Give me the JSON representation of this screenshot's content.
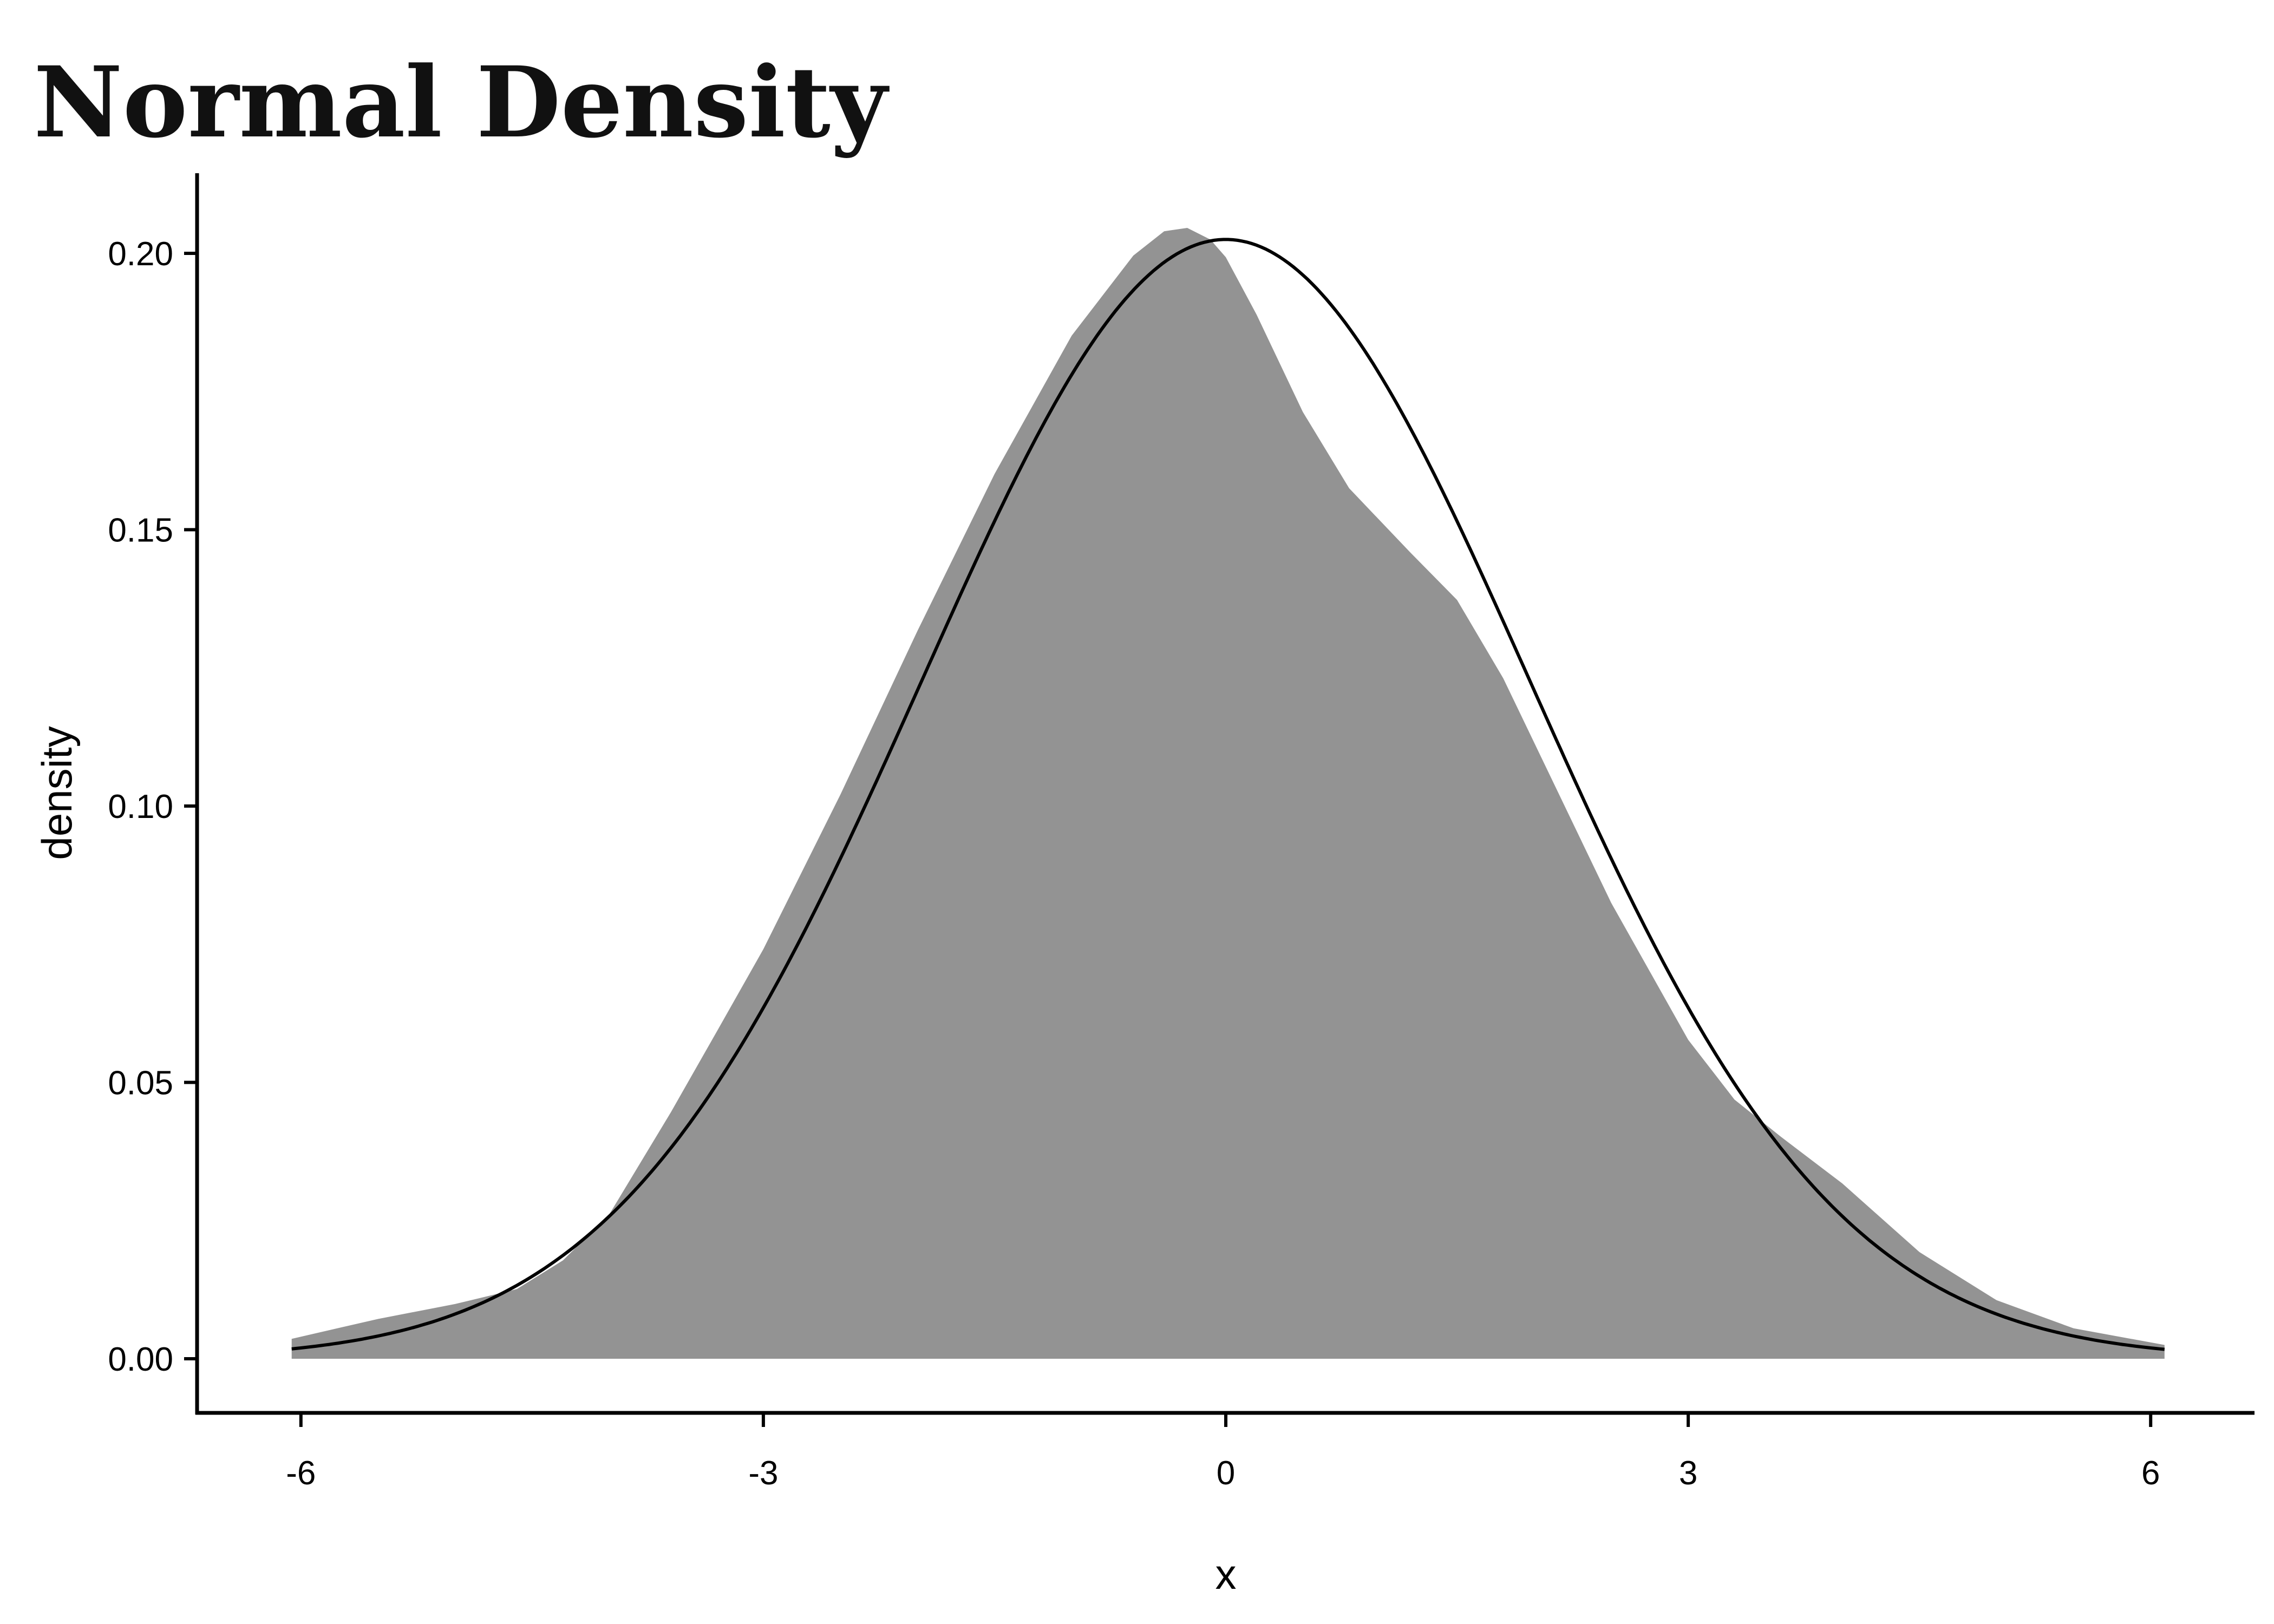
{
  "chart_data": {
    "type": "area",
    "title": "Normal Density",
    "xlabel": "x",
    "ylabel": "density",
    "xlim": [
      -6.6,
      6.6
    ],
    "ylim": [
      -0.01,
      0.215
    ],
    "x_ticks": [
      -6,
      -3,
      0,
      3,
      6
    ],
    "x_tick_labels": [
      "-6",
      "-3",
      "0",
      "3",
      "6"
    ],
    "y_ticks": [
      0.0,
      0.05,
      0.1,
      0.15,
      0.2
    ],
    "y_tick_labels": [
      "0.00",
      "0.05",
      "0.10",
      "0.15",
      "0.20"
    ],
    "grid": false,
    "series": [
      {
        "kind": "area",
        "color": "#939393",
        "x": [
          -6.06,
          -5.5,
          -5.0,
          -4.6,
          -4.3,
          -4.0,
          -3.6,
          -3.3,
          -3.0,
          -2.5,
          -2.0,
          -1.5,
          -1.0,
          -0.6,
          -0.4,
          -0.25,
          -0.1,
          0.0,
          0.2,
          0.5,
          0.8,
          1.2,
          1.5,
          1.8,
          2.1,
          2.5,
          3.0,
          3.3,
          3.6,
          4.0,
          4.5,
          5.0,
          5.5,
          6.09
        ],
        "y": [
          0.0036,
          0.0072,
          0.0099,
          0.0126,
          0.0178,
          0.0261,
          0.0446,
          0.0593,
          0.0741,
          0.1021,
          0.1317,
          0.1601,
          0.1851,
          0.1996,
          0.204,
          0.2046,
          0.2025,
          0.1993,
          0.1889,
          0.1713,
          0.1575,
          0.1458,
          0.1373,
          0.1231,
          0.1057,
          0.0825,
          0.0577,
          0.0469,
          0.0402,
          0.0317,
          0.0193,
          0.0106,
          0.0055,
          0.0025
        ]
      },
      {
        "kind": "line",
        "color": "#000000",
        "mean": 0,
        "sd": 1.97,
        "x_range": [
          -6.06,
          6.09
        ]
      }
    ]
  }
}
